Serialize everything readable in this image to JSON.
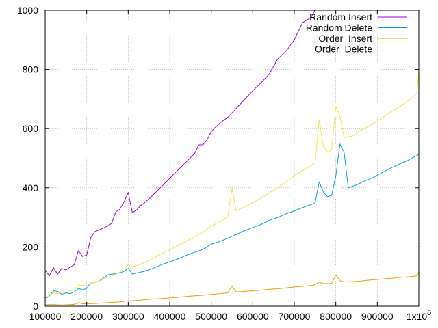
{
  "chart_data": {
    "type": "line",
    "title": "",
    "xlabel": "",
    "ylabel": "",
    "xlim": [
      100000,
      1000000
    ],
    "ylim": [
      0,
      1000
    ],
    "grid": true,
    "legend_position": "top-right",
    "x_ticks": [
      {
        "value": 100000,
        "label": "100000"
      },
      {
        "value": 200000,
        "label": "200000"
      },
      {
        "value": 300000,
        "label": "300000"
      },
      {
        "value": 400000,
        "label": "400000"
      },
      {
        "value": 500000,
        "label": "500000"
      },
      {
        "value": 600000,
        "label": "600000"
      },
      {
        "value": 700000,
        "label": "700000"
      },
      {
        "value": 800000,
        "label": "800000"
      },
      {
        "value": 900000,
        "label": "900000"
      },
      {
        "value": 1000000,
        "label": "1x10",
        "sup": "6"
      }
    ],
    "y_ticks": [
      {
        "value": 0,
        "label": "0"
      },
      {
        "value": 200,
        "label": "200"
      },
      {
        "value": 400,
        "label": "400"
      },
      {
        "value": 600,
        "label": "600"
      },
      {
        "value": 800,
        "label": "800"
      },
      {
        "value": 1000,
        "label": "1000"
      }
    ],
    "series": [
      {
        "name": "Random Insert",
        "color": "#9400d3",
        "points": [
          [
            100000,
            122
          ],
          [
            110000,
            102
          ],
          [
            120000,
            130
          ],
          [
            130000,
            108
          ],
          [
            140000,
            128
          ],
          [
            150000,
            122
          ],
          [
            160000,
            132
          ],
          [
            170000,
            140
          ],
          [
            180000,
            188
          ],
          [
            190000,
            168
          ],
          [
            200000,
            173
          ],
          [
            210000,
            232
          ],
          [
            220000,
            252
          ],
          [
            230000,
            258
          ],
          [
            240000,
            264
          ],
          [
            250000,
            270
          ],
          [
            260000,
            280
          ],
          [
            270000,
            318
          ],
          [
            280000,
            328
          ],
          [
            290000,
            352
          ],
          [
            300000,
            384
          ],
          [
            310000,
            316
          ],
          [
            320000,
            325
          ],
          [
            330000,
            340
          ],
          [
            340000,
            350
          ],
          [
            360000,
            376
          ],
          [
            380000,
            404
          ],
          [
            400000,
            432
          ],
          [
            420000,
            460
          ],
          [
            440000,
            488
          ],
          [
            460000,
            516
          ],
          [
            470000,
            545
          ],
          [
            480000,
            545
          ],
          [
            490000,
            562
          ],
          [
            500000,
            590
          ],
          [
            520000,
            618
          ],
          [
            540000,
            638
          ],
          [
            560000,
            668
          ],
          [
            580000,
            698
          ],
          [
            600000,
            728
          ],
          [
            620000,
            755
          ],
          [
            640000,
            785
          ],
          [
            660000,
            835
          ],
          [
            680000,
            862
          ],
          [
            700000,
            900
          ],
          [
            720000,
            958
          ],
          [
            740000,
            975
          ],
          [
            750000,
            1000
          ]
        ]
      },
      {
        "name": "Random Delete",
        "color": "#009ed7",
        "points": [
          [
            100000,
            28
          ],
          [
            110000,
            35
          ],
          [
            120000,
            52
          ],
          [
            130000,
            50
          ],
          [
            140000,
            40
          ],
          [
            150000,
            45
          ],
          [
            160000,
            42
          ],
          [
            170000,
            48
          ],
          [
            180000,
            60
          ],
          [
            190000,
            55
          ],
          [
            200000,
            60
          ],
          [
            210000,
            78
          ],
          [
            220000,
            80
          ],
          [
            230000,
            85
          ],
          [
            240000,
            95
          ],
          [
            250000,
            105
          ],
          [
            260000,
            108
          ],
          [
            270000,
            110
          ],
          [
            280000,
            112
          ],
          [
            290000,
            118
          ],
          [
            300000,
            128
          ],
          [
            310000,
            108
          ],
          [
            320000,
            112
          ],
          [
            340000,
            118
          ],
          [
            360000,
            128
          ],
          [
            380000,
            140
          ],
          [
            400000,
            150
          ],
          [
            420000,
            160
          ],
          [
            440000,
            172
          ],
          [
            460000,
            182
          ],
          [
            480000,
            192
          ],
          [
            500000,
            210
          ],
          [
            520000,
            218
          ],
          [
            540000,
            230
          ],
          [
            560000,
            242
          ],
          [
            580000,
            255
          ],
          [
            600000,
            266
          ],
          [
            620000,
            276
          ],
          [
            640000,
            290
          ],
          [
            660000,
            300
          ],
          [
            680000,
            312
          ],
          [
            700000,
            322
          ],
          [
            720000,
            333
          ],
          [
            740000,
            343
          ],
          [
            750000,
            348
          ],
          [
            760000,
            420
          ],
          [
            770000,
            385
          ],
          [
            780000,
            370
          ],
          [
            790000,
            375
          ],
          [
            800000,
            440
          ],
          [
            810000,
            548
          ],
          [
            820000,
            520
          ],
          [
            830000,
            400
          ],
          [
            850000,
            410
          ],
          [
            870000,
            423
          ],
          [
            890000,
            435
          ],
          [
            910000,
            450
          ],
          [
            930000,
            465
          ],
          [
            950000,
            478
          ],
          [
            970000,
            490
          ],
          [
            990000,
            505
          ],
          [
            1000000,
            513
          ]
        ]
      },
      {
        "name": "Order  Insert",
        "color": "#e69f00",
        "points": [
          [
            100000,
            5
          ],
          [
            120000,
            5
          ],
          [
            140000,
            4
          ],
          [
            160000,
            5
          ],
          [
            170000,
            6
          ],
          [
            180000,
            12
          ],
          [
            190000,
            8
          ],
          [
            200000,
            8
          ],
          [
            220000,
            9
          ],
          [
            240000,
            11
          ],
          [
            260000,
            13
          ],
          [
            280000,
            14
          ],
          [
            300000,
            18
          ],
          [
            320000,
            19
          ],
          [
            340000,
            22
          ],
          [
            360000,
            24
          ],
          [
            380000,
            26
          ],
          [
            400000,
            28
          ],
          [
            420000,
            30
          ],
          [
            440000,
            33
          ],
          [
            460000,
            35
          ],
          [
            480000,
            37
          ],
          [
            500000,
            40
          ],
          [
            520000,
            42
          ],
          [
            540000,
            45
          ],
          [
            550000,
            68
          ],
          [
            560000,
            48
          ],
          [
            580000,
            50
          ],
          [
            600000,
            52
          ],
          [
            620000,
            54
          ],
          [
            640000,
            57
          ],
          [
            660000,
            59
          ],
          [
            680000,
            62
          ],
          [
            700000,
            65
          ],
          [
            720000,
            67
          ],
          [
            740000,
            70
          ],
          [
            750000,
            72
          ],
          [
            760000,
            82
          ],
          [
            770000,
            76
          ],
          [
            790000,
            77
          ],
          [
            800000,
            105
          ],
          [
            810000,
            86
          ],
          [
            820000,
            82
          ],
          [
            840000,
            83
          ],
          [
            860000,
            85
          ],
          [
            880000,
            88
          ],
          [
            900000,
            90
          ],
          [
            920000,
            93
          ],
          [
            940000,
            95
          ],
          [
            960000,
            98
          ],
          [
            980000,
            100
          ],
          [
            995000,
            102
          ],
          [
            1000000,
            115
          ]
        ]
      },
      {
        "name": "Order  Delete",
        "color": "#f0e442",
        "points": [
          [
            100000,
            18
          ],
          [
            110000,
            38
          ],
          [
            120000,
            45
          ],
          [
            130000,
            42
          ],
          [
            140000,
            48
          ],
          [
            150000,
            46
          ],
          [
            160000,
            52
          ],
          [
            170000,
            55
          ],
          [
            180000,
            72
          ],
          [
            190000,
            70
          ],
          [
            200000,
            68
          ],
          [
            210000,
            78
          ],
          [
            220000,
            80
          ],
          [
            230000,
            85
          ],
          [
            240000,
            90
          ],
          [
            250000,
            98
          ],
          [
            260000,
            100
          ],
          [
            270000,
            108
          ],
          [
            280000,
            115
          ],
          [
            290000,
            125
          ],
          [
            300000,
            140
          ],
          [
            310000,
            133
          ],
          [
            320000,
            137
          ],
          [
            340000,
            148
          ],
          [
            360000,
            162
          ],
          [
            380000,
            178
          ],
          [
            400000,
            190
          ],
          [
            420000,
            205
          ],
          [
            440000,
            220
          ],
          [
            460000,
            235
          ],
          [
            480000,
            250
          ],
          [
            500000,
            270
          ],
          [
            520000,
            285
          ],
          [
            540000,
            302
          ],
          [
            550000,
            398
          ],
          [
            560000,
            322
          ],
          [
            580000,
            335
          ],
          [
            600000,
            350
          ],
          [
            620000,
            365
          ],
          [
            640000,
            383
          ],
          [
            660000,
            400
          ],
          [
            680000,
            420
          ],
          [
            700000,
            440
          ],
          [
            720000,
            458
          ],
          [
            740000,
            475
          ],
          [
            750000,
            485
          ],
          [
            760000,
            630
          ],
          [
            770000,
            540
          ],
          [
            780000,
            520
          ],
          [
            790000,
            528
          ],
          [
            800000,
            675
          ],
          [
            810000,
            640
          ],
          [
            820000,
            570
          ],
          [
            840000,
            575
          ],
          [
            860000,
            595
          ],
          [
            880000,
            608
          ],
          [
            900000,
            625
          ],
          [
            920000,
            645
          ],
          [
            940000,
            662
          ],
          [
            960000,
            680
          ],
          [
            980000,
            700
          ],
          [
            995000,
            720
          ],
          [
            1000000,
            795
          ]
        ]
      }
    ]
  }
}
